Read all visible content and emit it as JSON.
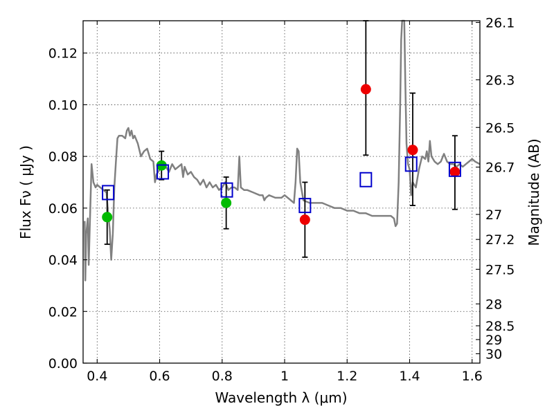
{
  "chart_data": {
    "type": "scatter",
    "xlabel": "Wavelength  λ (μm)",
    "ylabel": "Flux  Fν  ( μJy )",
    "y2label": "Magnitude (AB)",
    "xlim": [
      0.355,
      1.625
    ],
    "ylim": [
      0.0,
      0.1325
    ],
    "grid": true,
    "x_ticks": [
      0.4,
      0.6,
      0.8,
      1.0,
      1.2,
      1.4,
      1.6
    ],
    "x_tick_labels": [
      "0.4",
      "0.6",
      "0.8",
      "1",
      "1.2",
      "1.4",
      "1.6"
    ],
    "y_ticks": [
      0.0,
      0.02,
      0.04,
      0.06,
      0.08,
      0.1,
      0.12
    ],
    "y_tick_labels": [
      "0.00",
      "0.02",
      "0.04",
      "0.06",
      "0.08",
      "0.10",
      "0.12"
    ],
    "mag_ticks": [
      26.1,
      26.3,
      26.5,
      26.7,
      27,
      27.2,
      27.5,
      28,
      28.5,
      29,
      30
    ],
    "mag_tick_labels": [
      "26.1",
      "26.3",
      "26.5",
      "26.7",
      "27",
      "27.2",
      "27.5",
      "28",
      "28.5",
      "29",
      "30"
    ],
    "colors": {
      "model": "#808080",
      "green": "#00bb00",
      "red": "#ee0000",
      "box": "#0000cc",
      "errorbar": "#000000"
    },
    "model_spectrum": [
      [
        0.36,
        0.055
      ],
      [
        0.362,
        0.032
      ],
      [
        0.365,
        0.05
      ],
      [
        0.37,
        0.056
      ],
      [
        0.373,
        0.038
      ],
      [
        0.378,
        0.06
      ],
      [
        0.382,
        0.077
      ],
      [
        0.388,
        0.07
      ],
      [
        0.395,
        0.068
      ],
      [
        0.4,
        0.069
      ],
      [
        0.41,
        0.068
      ],
      [
        0.42,
        0.067
      ],
      [
        0.43,
        0.066
      ],
      [
        0.435,
        0.058
      ],
      [
        0.44,
        0.052
      ],
      [
        0.445,
        0.04
      ],
      [
        0.45,
        0.05
      ],
      [
        0.455,
        0.068
      ],
      [
        0.46,
        0.078
      ],
      [
        0.465,
        0.087
      ],
      [
        0.47,
        0.088
      ],
      [
        0.48,
        0.088
      ],
      [
        0.49,
        0.087
      ],
      [
        0.495,
        0.09
      ],
      [
        0.5,
        0.091
      ],
      [
        0.505,
        0.088
      ],
      [
        0.51,
        0.09
      ],
      [
        0.515,
        0.087
      ],
      [
        0.52,
        0.088
      ],
      [
        0.53,
        0.085
      ],
      [
        0.54,
        0.08
      ],
      [
        0.55,
        0.082
      ],
      [
        0.56,
        0.083
      ],
      [
        0.57,
        0.079
      ],
      [
        0.58,
        0.078
      ],
      [
        0.585,
        0.07
      ],
      [
        0.59,
        0.073
      ],
      [
        0.6,
        0.075
      ],
      [
        0.61,
        0.077
      ],
      [
        0.62,
        0.076
      ],
      [
        0.63,
        0.074
      ],
      [
        0.64,
        0.077
      ],
      [
        0.65,
        0.075
      ],
      [
        0.66,
        0.076
      ],
      [
        0.67,
        0.077
      ],
      [
        0.675,
        0.072
      ],
      [
        0.68,
        0.076
      ],
      [
        0.69,
        0.073
      ],
      [
        0.7,
        0.074
      ],
      [
        0.71,
        0.072
      ],
      [
        0.72,
        0.071
      ],
      [
        0.73,
        0.069
      ],
      [
        0.74,
        0.071
      ],
      [
        0.75,
        0.068
      ],
      [
        0.76,
        0.07
      ],
      [
        0.77,
        0.068
      ],
      [
        0.78,
        0.069
      ],
      [
        0.79,
        0.067
      ],
      [
        0.8,
        0.068
      ],
      [
        0.81,
        0.07
      ],
      [
        0.82,
        0.067
      ],
      [
        0.83,
        0.068
      ],
      [
        0.84,
        0.068
      ],
      [
        0.85,
        0.067
      ],
      [
        0.855,
        0.08
      ],
      [
        0.86,
        0.068
      ],
      [
        0.87,
        0.067
      ],
      [
        0.88,
        0.067
      ],
      [
        0.9,
        0.066
      ],
      [
        0.92,
        0.065
      ],
      [
        0.93,
        0.065
      ],
      [
        0.935,
        0.063
      ],
      [
        0.94,
        0.064
      ],
      [
        0.95,
        0.065
      ],
      [
        0.97,
        0.064
      ],
      [
        0.99,
        0.064
      ],
      [
        1.0,
        0.065
      ],
      [
        1.01,
        0.064
      ],
      [
        1.02,
        0.063
      ],
      [
        1.03,
        0.062
      ],
      [
        1.035,
        0.07
      ],
      [
        1.04,
        0.083
      ],
      [
        1.045,
        0.082
      ],
      [
        1.05,
        0.07
      ],
      [
        1.06,
        0.063
      ],
      [
        1.08,
        0.062
      ],
      [
        1.1,
        0.062
      ],
      [
        1.12,
        0.062
      ],
      [
        1.14,
        0.061
      ],
      [
        1.16,
        0.06
      ],
      [
        1.18,
        0.06
      ],
      [
        1.2,
        0.059
      ],
      [
        1.22,
        0.059
      ],
      [
        1.24,
        0.058
      ],
      [
        1.26,
        0.058
      ],
      [
        1.28,
        0.057
      ],
      [
        1.3,
        0.057
      ],
      [
        1.32,
        0.057
      ],
      [
        1.34,
        0.057
      ],
      [
        1.35,
        0.056
      ],
      [
        1.355,
        0.053
      ],
      [
        1.36,
        0.054
      ],
      [
        1.365,
        0.07
      ],
      [
        1.37,
        0.1
      ],
      [
        1.373,
        0.125
      ],
      [
        1.376,
        0.1325
      ],
      [
        1.383,
        0.1325
      ],
      [
        1.386,
        0.11
      ],
      [
        1.39,
        0.085
      ],
      [
        1.395,
        0.077
      ],
      [
        1.4,
        0.075
      ],
      [
        1.405,
        0.065
      ],
      [
        1.41,
        0.07
      ],
      [
        1.42,
        0.068
      ],
      [
        1.43,
        0.075
      ],
      [
        1.44,
        0.08
      ],
      [
        1.45,
        0.079
      ],
      [
        1.455,
        0.082
      ],
      [
        1.46,
        0.078
      ],
      [
        1.465,
        0.086
      ],
      [
        1.47,
        0.08
      ],
      [
        1.48,
        0.078
      ],
      [
        1.49,
        0.077
      ],
      [
        1.5,
        0.078
      ],
      [
        1.51,
        0.081
      ],
      [
        1.52,
        0.078
      ],
      [
        1.53,
        0.077
      ],
      [
        1.54,
        0.077
      ],
      [
        1.55,
        0.076
      ],
      [
        1.56,
        0.077
      ],
      [
        1.57,
        0.076
      ],
      [
        1.58,
        0.077
      ],
      [
        1.59,
        0.078
      ],
      [
        1.6,
        0.079
      ],
      [
        1.61,
        0.078
      ],
      [
        1.625,
        0.077
      ]
    ],
    "model_boxes": [
      {
        "x": 0.435,
        "y": 0.066
      },
      {
        "x": 0.61,
        "y": 0.074
      },
      {
        "x": 0.815,
        "y": 0.067
      },
      {
        "x": 1.065,
        "y": 0.061
      },
      {
        "x": 1.26,
        "y": 0.071
      },
      {
        "x": 1.405,
        "y": 0.077
      },
      {
        "x": 1.545,
        "y": 0.075
      }
    ],
    "observed_points": [
      {
        "x": 0.432,
        "y": 0.0565,
        "yerr_low": 0.046,
        "yerr_high": 0.067,
        "color": "green"
      },
      {
        "x": 0.606,
        "y": 0.0765,
        "yerr_low": 0.071,
        "yerr_high": 0.082,
        "color": "green"
      },
      {
        "x": 0.813,
        "y": 0.062,
        "yerr_low": 0.052,
        "yerr_high": 0.072,
        "color": "green"
      },
      {
        "x": 1.065,
        "y": 0.0555,
        "yerr_low": 0.041,
        "yerr_high": 0.07,
        "color": "red"
      },
      {
        "x": 1.26,
        "y": 0.106,
        "yerr_low": 0.0805,
        "yerr_high": 0.1325,
        "color": "red"
      },
      {
        "x": 1.41,
        "y": 0.0825,
        "yerr_low": 0.061,
        "yerr_high": 0.1045,
        "color": "red"
      },
      {
        "x": 1.545,
        "y": 0.074,
        "yerr_low": 0.0595,
        "yerr_high": 0.088,
        "color": "red"
      }
    ]
  }
}
